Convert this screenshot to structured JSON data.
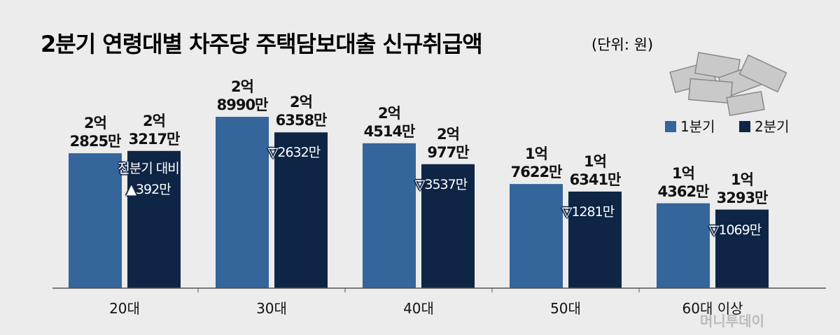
{
  "chart_data": {
    "type": "bar",
    "title": "2분기 연령대별 차주당 주택담보대출 신규취급액",
    "subtitle": "(단위: 원)",
    "categories": [
      "20대",
      "30대",
      "40대",
      "50대",
      "60대 이상"
    ],
    "series": [
      {
        "name": "1분기",
        "color": "#34659b",
        "values": [
          228250000,
          289900000,
          245140000,
          176220000,
          143620000
        ],
        "value_labels": [
          "2억\n2825만",
          "2억\n8990만",
          "2억\n4514만",
          "1억\n7622만",
          "1억\n4362만"
        ]
      },
      {
        "name": "2분기",
        "color": "#0f2545",
        "values": [
          232170000,
          263580000,
          209770000,
          163410000,
          132930000
        ],
        "value_labels": [
          "2억\n3217만",
          "2억\n6358만",
          "2억\n977만",
          "1억\n6341만",
          "1억\n3293만"
        ]
      }
    ],
    "annotations": [
      "전분기 대비\n▲392만",
      "▽2632만",
      "▽3537만",
      "▽1281만",
      "▽1069만"
    ],
    "ylim": [
      0,
      300000000
    ],
    "source": "머니투데이"
  }
}
